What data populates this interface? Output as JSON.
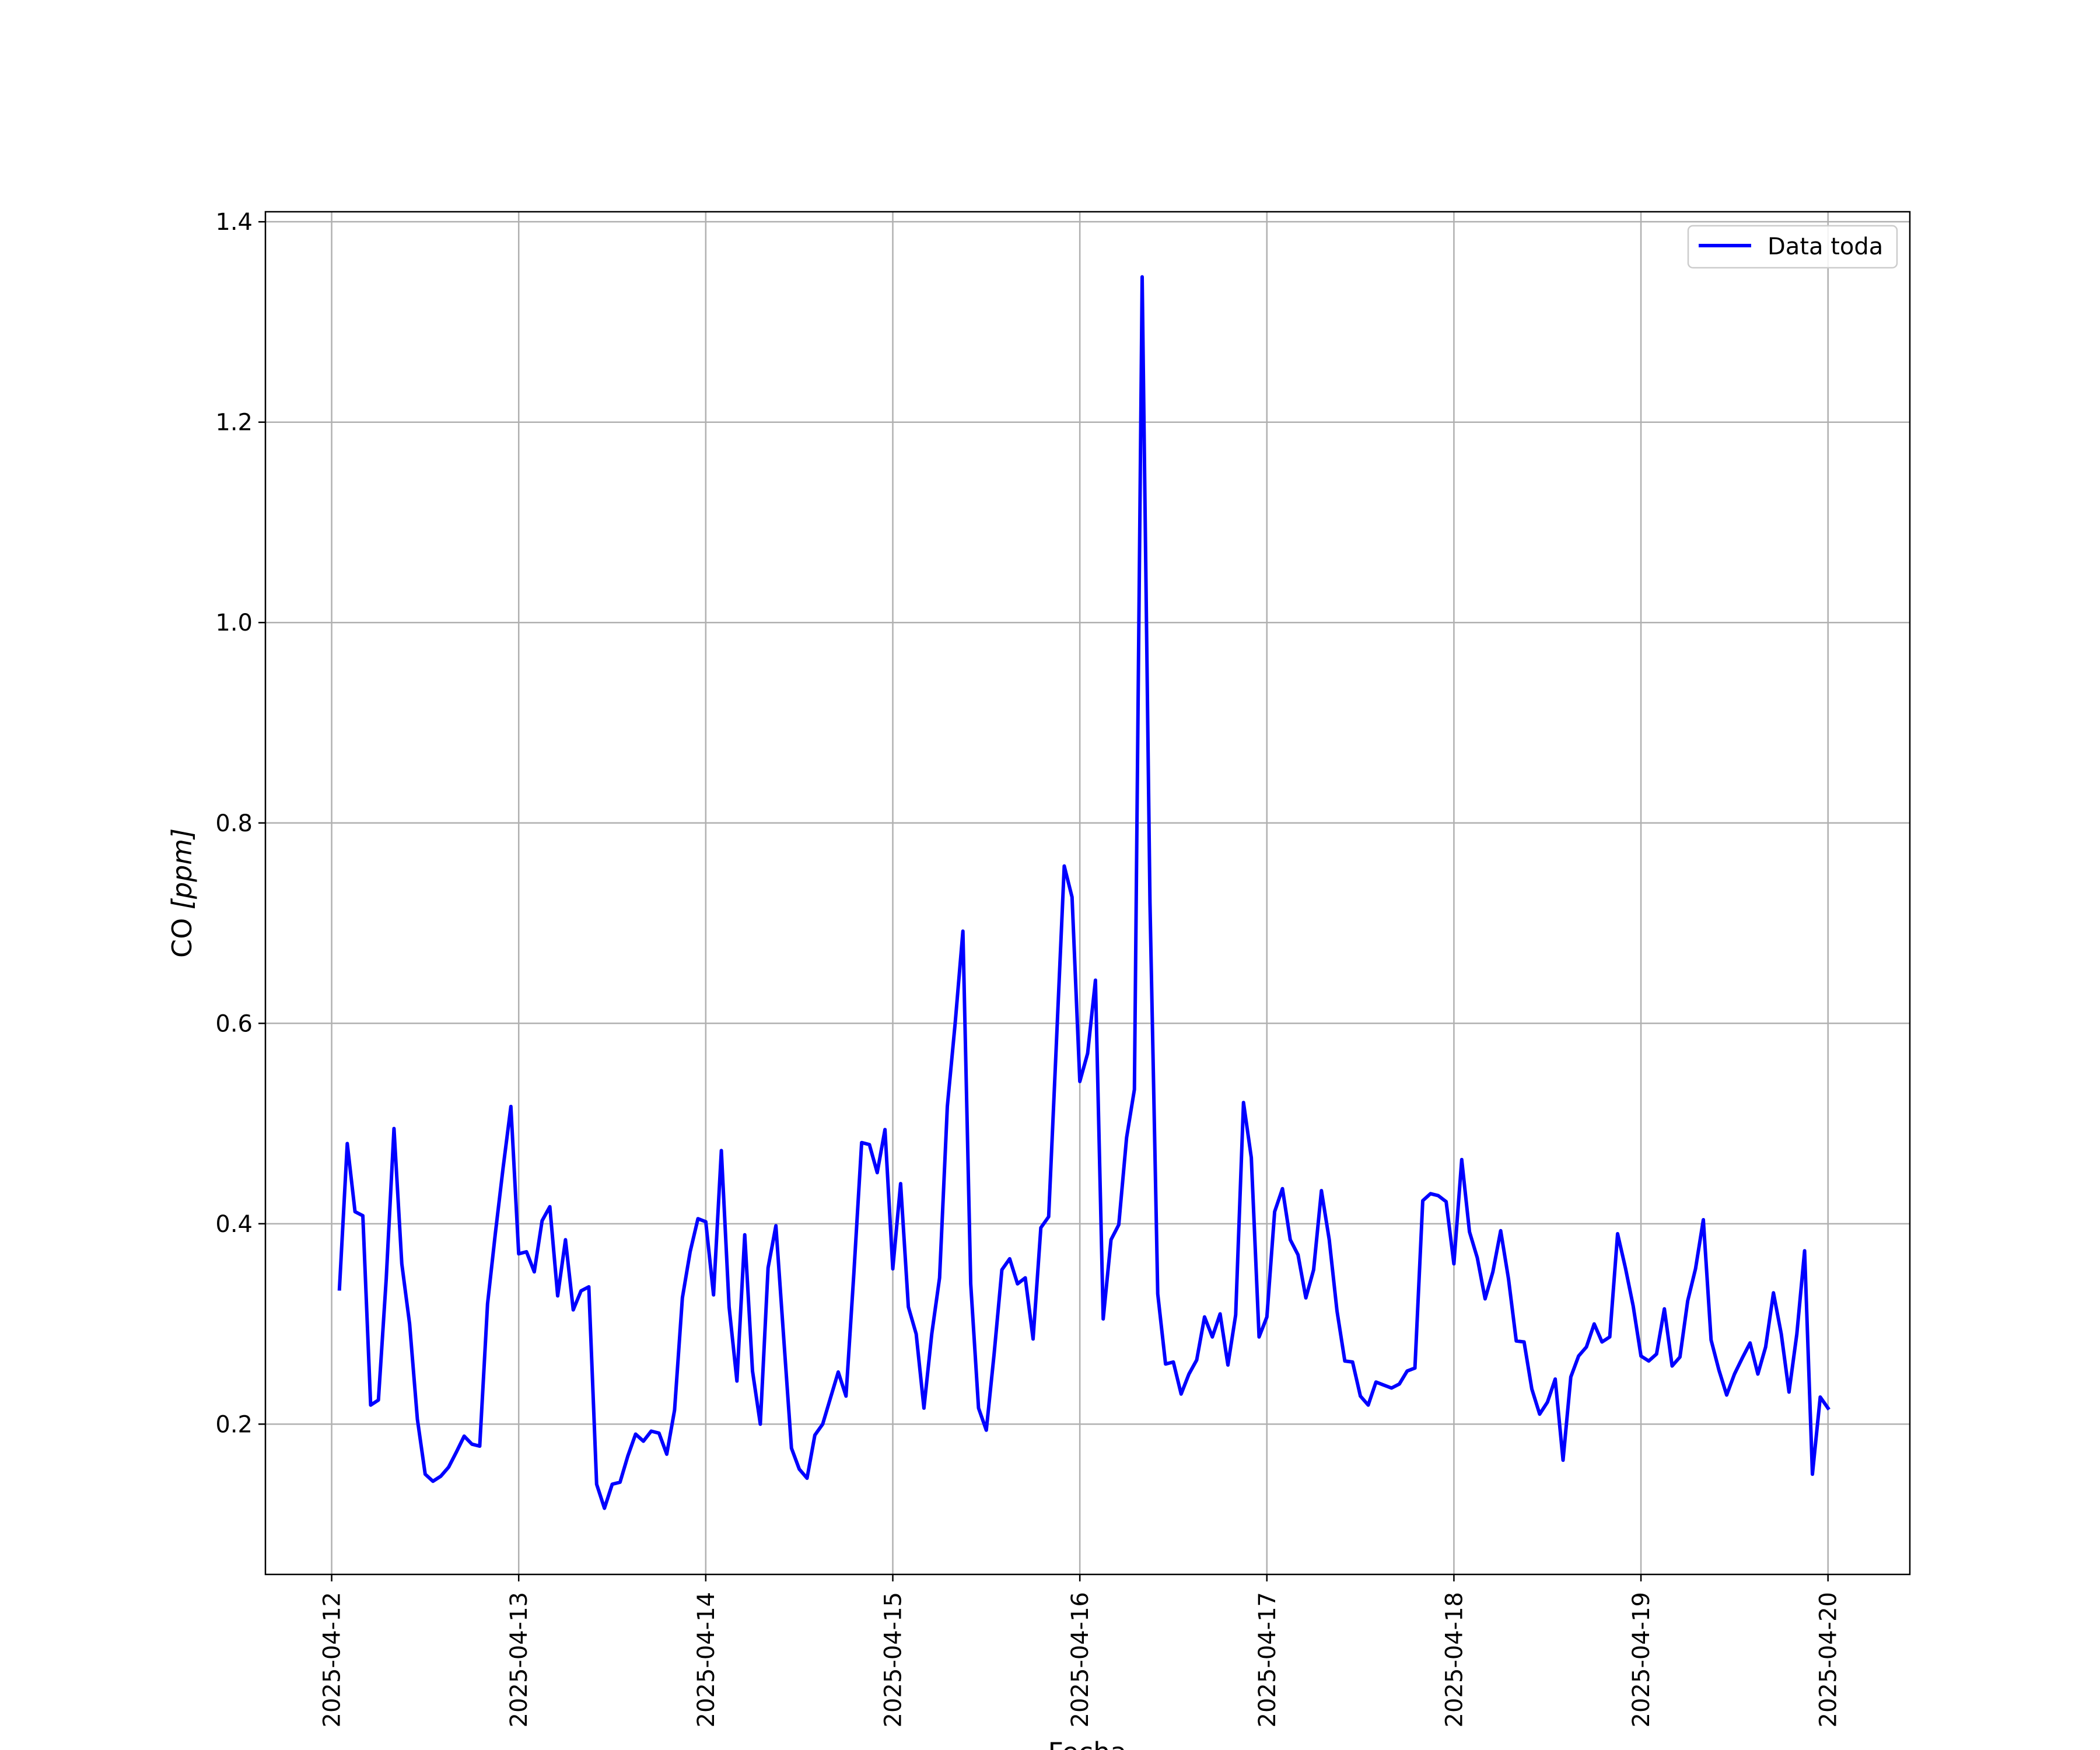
{
  "chart_data": {
    "type": "line",
    "xlabel": "Fecha",
    "ylabel_prefix": "CO ",
    "ylabel_unit": "[ppm]",
    "x_ticks": [
      "2025-04-12",
      "2025-04-13",
      "2025-04-14",
      "2025-04-15",
      "2025-04-16",
      "2025-04-17",
      "2025-04-18",
      "2025-04-19",
      "2025-04-20"
    ],
    "y_ticks": [
      "0.2",
      "0.4",
      "0.6",
      "0.8",
      "1.0",
      "1.2",
      "1.4"
    ],
    "ylim": [
      0.05,
      1.41
    ],
    "xlim": [
      "2025-04-11 15:30",
      "2025-04-20 10:30"
    ],
    "grid": true,
    "legend_position": "top-right",
    "colors": {
      "series": "#0000ff",
      "grid": "#b0b0b0",
      "axes": "#000000"
    },
    "series": [
      {
        "name": "Data toda",
        "x": [
          "2025-04-12 01:00",
          "2025-04-12 02:00",
          "2025-04-12 03:00",
          "2025-04-12 04:00",
          "2025-04-12 05:00",
          "2025-04-12 06:00",
          "2025-04-12 07:00",
          "2025-04-12 08:00",
          "2025-04-12 09:00",
          "2025-04-12 10:00",
          "2025-04-12 11:00",
          "2025-04-12 12:00",
          "2025-04-12 13:00",
          "2025-04-12 14:00",
          "2025-04-12 15:00",
          "2025-04-12 16:00",
          "2025-04-12 17:00",
          "2025-04-12 18:00",
          "2025-04-12 19:00",
          "2025-04-12 20:00",
          "2025-04-12 21:00",
          "2025-04-12 22:00",
          "2025-04-12 23:00",
          "2025-04-13 00:00",
          "2025-04-13 01:00",
          "2025-04-13 02:00",
          "2025-04-13 03:00",
          "2025-04-13 04:00",
          "2025-04-13 05:00",
          "2025-04-13 06:00",
          "2025-04-13 07:00",
          "2025-04-13 08:00",
          "2025-04-13 09:00",
          "2025-04-13 10:00",
          "2025-04-13 11:00",
          "2025-04-13 12:00",
          "2025-04-13 13:00",
          "2025-04-13 14:00",
          "2025-04-13 15:00",
          "2025-04-13 16:00",
          "2025-04-13 17:00",
          "2025-04-13 18:00",
          "2025-04-13 19:00",
          "2025-04-13 20:00",
          "2025-04-13 21:00",
          "2025-04-13 22:00",
          "2025-04-13 23:00",
          "2025-04-14 00:00",
          "2025-04-14 01:00",
          "2025-04-14 02:00",
          "2025-04-14 03:00",
          "2025-04-14 04:00",
          "2025-04-14 05:00",
          "2025-04-14 06:00",
          "2025-04-14 07:00",
          "2025-04-14 08:00",
          "2025-04-14 09:00",
          "2025-04-14 10:00",
          "2025-04-14 11:00",
          "2025-04-14 12:00",
          "2025-04-14 13:00",
          "2025-04-14 14:00",
          "2025-04-14 15:00",
          "2025-04-14 16:00",
          "2025-04-14 17:00",
          "2025-04-14 18:00",
          "2025-04-14 19:00",
          "2025-04-14 20:00",
          "2025-04-14 21:00",
          "2025-04-14 22:00",
          "2025-04-14 23:00",
          "2025-04-15 00:00",
          "2025-04-15 01:00",
          "2025-04-15 02:00",
          "2025-04-15 03:00",
          "2025-04-15 04:00",
          "2025-04-15 05:00",
          "2025-04-15 06:00",
          "2025-04-15 07:00",
          "2025-04-15 08:00",
          "2025-04-15 09:00",
          "2025-04-15 10:00",
          "2025-04-15 11:00",
          "2025-04-15 12:00",
          "2025-04-15 13:00",
          "2025-04-15 14:00",
          "2025-04-15 15:00",
          "2025-04-15 16:00",
          "2025-04-15 17:00",
          "2025-04-15 18:00",
          "2025-04-15 19:00",
          "2025-04-15 20:00",
          "2025-04-15 21:00",
          "2025-04-15 22:00",
          "2025-04-15 23:00",
          "2025-04-16 00:00",
          "2025-04-16 01:00",
          "2025-04-16 02:00",
          "2025-04-16 03:00",
          "2025-04-16 04:00",
          "2025-04-16 05:00",
          "2025-04-16 06:00",
          "2025-04-16 07:00",
          "2025-04-16 08:00",
          "2025-04-16 09:00",
          "2025-04-16 10:00",
          "2025-04-16 11:00",
          "2025-04-16 12:00",
          "2025-04-16 13:00",
          "2025-04-16 14:00",
          "2025-04-16 15:00",
          "2025-04-16 16:00",
          "2025-04-16 17:00",
          "2025-04-16 18:00",
          "2025-04-16 19:00",
          "2025-04-16 20:00",
          "2025-04-16 21:00",
          "2025-04-16 22:00",
          "2025-04-16 23:00",
          "2025-04-17 00:00",
          "2025-04-17 01:00",
          "2025-04-17 02:00",
          "2025-04-17 03:00",
          "2025-04-17 04:00",
          "2025-04-17 05:00",
          "2025-04-17 06:00",
          "2025-04-17 07:00",
          "2025-04-17 08:00",
          "2025-04-17 09:00",
          "2025-04-17 10:00",
          "2025-04-17 11:00",
          "2025-04-17 12:00",
          "2025-04-17 13:00",
          "2025-04-17 14:00",
          "2025-04-17 15:00",
          "2025-04-17 16:00",
          "2025-04-17 17:00",
          "2025-04-17 18:00",
          "2025-04-17 19:00",
          "2025-04-17 20:00",
          "2025-04-17 21:00",
          "2025-04-17 22:00",
          "2025-04-17 23:00",
          "2025-04-18 00:00",
          "2025-04-18 01:00",
          "2025-04-18 02:00",
          "2025-04-18 03:00",
          "2025-04-18 04:00",
          "2025-04-18 05:00",
          "2025-04-18 06:00",
          "2025-04-18 07:00",
          "2025-04-18 08:00",
          "2025-04-18 09:00",
          "2025-04-18 10:00",
          "2025-04-18 11:00",
          "2025-04-18 12:00",
          "2025-04-18 13:00",
          "2025-04-18 14:00",
          "2025-04-18 15:00",
          "2025-04-18 16:00",
          "2025-04-18 17:00",
          "2025-04-18 18:00",
          "2025-04-18 19:00",
          "2025-04-18 20:00",
          "2025-04-18 21:00",
          "2025-04-18 22:00",
          "2025-04-18 23:00",
          "2025-04-19 00:00",
          "2025-04-19 01:00",
          "2025-04-19 02:00",
          "2025-04-19 03:00",
          "2025-04-19 04:00",
          "2025-04-19 05:00",
          "2025-04-19 06:00",
          "2025-04-19 07:00",
          "2025-04-19 08:00",
          "2025-04-19 09:00",
          "2025-04-19 10:00",
          "2025-04-19 11:00",
          "2025-04-19 12:00",
          "2025-04-19 13:00",
          "2025-04-19 14:00",
          "2025-04-19 15:00",
          "2025-04-19 16:00",
          "2025-04-19 17:00",
          "2025-04-19 18:00",
          "2025-04-19 19:00",
          "2025-04-19 20:00",
          "2025-04-19 21:00",
          "2025-04-19 22:00",
          "2025-04-19 23:00",
          "2025-04-20 00:00"
        ],
        "y": [
          0.335,
          0.48,
          0.412,
          0.408,
          0.219,
          0.224,
          0.345,
          0.495,
          0.36,
          0.3,
          0.205,
          0.15,
          0.143,
          0.148,
          0.157,
          0.172,
          0.188,
          0.18,
          0.178,
          0.32,
          0.39,
          0.456,
          0.517,
          0.37,
          0.372,
          0.352,
          0.403,
          0.417,
          0.328,
          0.384,
          0.314,
          0.333,
          0.337,
          0.14,
          0.116,
          0.14,
          0.142,
          0.168,
          0.19,
          0.183,
          0.193,
          0.191,
          0.17,
          0.214,
          0.326,
          0.372,
          0.405,
          0.402,
          0.329,
          0.473,
          0.317,
          0.243,
          0.389,
          0.253,
          0.2,
          0.356,
          0.398,
          0.286,
          0.176,
          0.155,
          0.146,
          0.189,
          0.2,
          0.226,
          0.252,
          0.228,
          0.35,
          0.481,
          0.479,
          0.451,
          0.494,
          0.355,
          0.44,
          0.317,
          0.29,
          0.216,
          0.29,
          0.346,
          0.517,
          0.6,
          0.692,
          0.34,
          0.216,
          0.194,
          0.27,
          0.354,
          0.365,
          0.34,
          0.346,
          0.285,
          0.396,
          0.407,
          0.582,
          0.757,
          0.726,
          0.542,
          0.57,
          0.643,
          0.305,
          0.384,
          0.399,
          0.486,
          0.534,
          1.345,
          0.72,
          0.33,
          0.26,
          0.262,
          0.23,
          0.25,
          0.264,
          0.307,
          0.287,
          0.31,
          0.259,
          0.309,
          0.521,
          0.466,
          0.287,
          0.307,
          0.412,
          0.435,
          0.384,
          0.369,
          0.326,
          0.354,
          0.433,
          0.384,
          0.313,
          0.263,
          0.262,
          0.228,
          0.219,
          0.242,
          0.239,
          0.236,
          0.24,
          0.253,
          0.256,
          0.423,
          0.43,
          0.428,
          0.422,
          0.36,
          0.464,
          0.392,
          0.366,
          0.325,
          0.352,
          0.393,
          0.345,
          0.283,
          0.282,
          0.235,
          0.21,
          0.222,
          0.245,
          0.164,
          0.247,
          0.268,
          0.277,
          0.3,
          0.282,
          0.287,
          0.39,
          0.356,
          0.318,
          0.268,
          0.263,
          0.27,
          0.315,
          0.258,
          0.267,
          0.323,
          0.355,
          0.404,
          0.284,
          0.254,
          0.229,
          0.25,
          0.266,
          0.281,
          0.25,
          0.277,
          0.331,
          0.29,
          0.232,
          0.29,
          0.373,
          0.15,
          0.227,
          0.216
        ]
      }
    ]
  }
}
